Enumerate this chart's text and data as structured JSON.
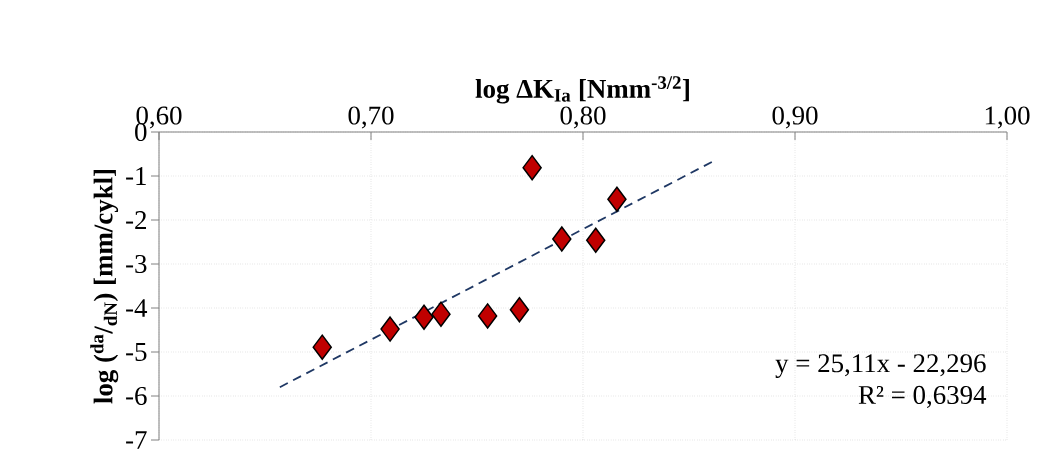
{
  "chart_data": {
    "type": "scatter",
    "xlabel": "log ΔK$_{Ia}$ [Nmm$^{-3/2}$]",
    "ylabel": "log ($^{da}$/$_{dN}$) [mm/cykl]",
    "xlim": [
      0.6,
      1.0
    ],
    "ylim": [
      -7,
      0
    ],
    "xticks": [
      {
        "value": 0.6,
        "label": "0,60"
      },
      {
        "value": 0.7,
        "label": "0,70"
      },
      {
        "value": 0.8,
        "label": "0,80"
      },
      {
        "value": 0.9,
        "label": "0,90"
      },
      {
        "value": 1.0,
        "label": "1,00"
      }
    ],
    "yticks": [
      -7,
      -6,
      -5,
      -4,
      -3,
      -2,
      -1,
      0
    ],
    "grid": true,
    "series": [
      {
        "type": "scatter",
        "marker": "diamond",
        "color": "#c00000",
        "x": [
          0.677,
          0.709,
          0.725,
          0.733,
          0.755,
          0.77,
          0.776,
          0.79,
          0.806,
          0.816
        ],
        "values": [
          -4.89,
          -4.48,
          -4.21,
          -4.14,
          -4.18,
          -4.04,
          -0.81,
          -2.43,
          -2.46,
          -1.53
        ]
      },
      {
        "type": "line",
        "marker": "none",
        "line_style": "dashed",
        "color": "#1f3864",
        "x": [
          0.657,
          0.862
        ],
        "values": [
          -5.8,
          -0.65
        ]
      }
    ],
    "annotations": [
      "y = 25,11x - 22,296",
      "R² = 0,6394"
    ]
  }
}
